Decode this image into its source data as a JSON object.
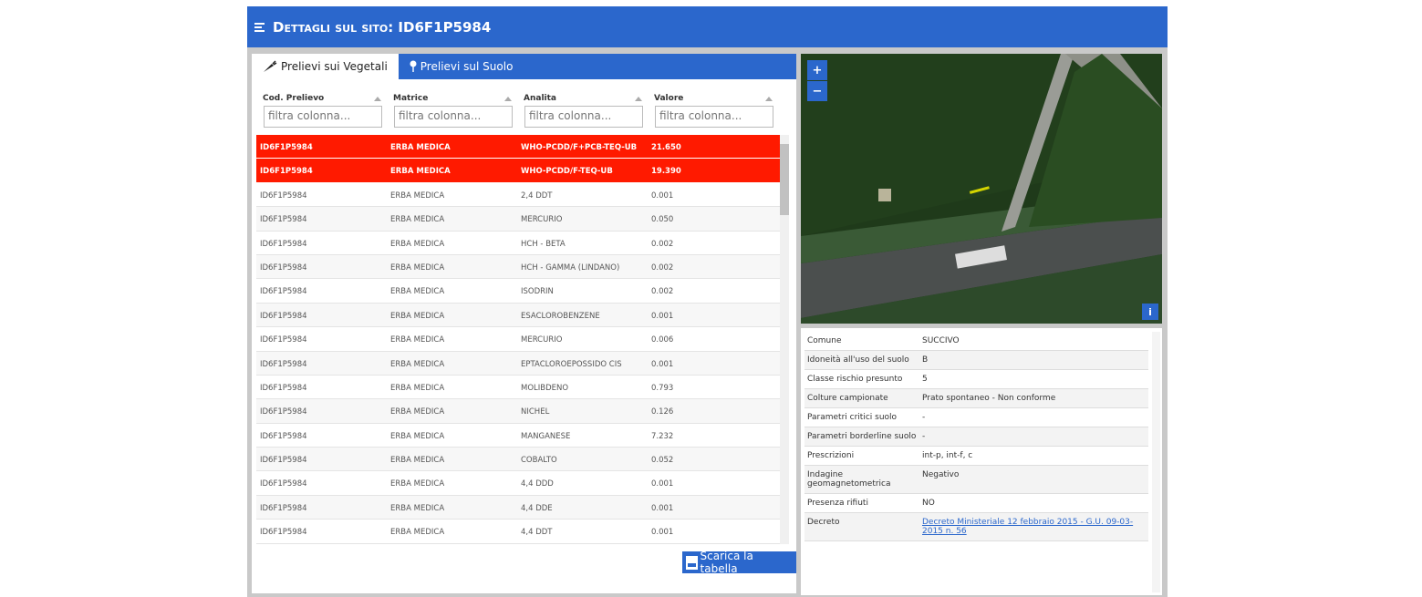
{
  "header": {
    "title": "Dettagli sul sito: ID6F1P5984"
  },
  "tabs": [
    "Prelievi sui Vegetali",
    "Prelievi sul Suolo"
  ],
  "table": {
    "columns": [
      "Cod. Prelievo",
      "Matrice",
      "Analita",
      "Valore"
    ],
    "filter_placeholder": "filtra colonna...",
    "rows": [
      [
        "ID6F1P5984",
        "ERBA MEDICA",
        "WHO-PCDD/F+PCB-TEQ-UB",
        "21.650"
      ],
      [
        "ID6F1P5984",
        "ERBA MEDICA",
        "WHO-PCDD/F-TEQ-UB",
        "19.390"
      ],
      [
        "ID6F1P5984",
        "ERBA MEDICA",
        "2,4 DDT",
        "0.001"
      ],
      [
        "ID6F1P5984",
        "ERBA MEDICA",
        "MERCURIO",
        "0.050"
      ],
      [
        "ID6F1P5984",
        "ERBA MEDICA",
        "HCH - BETA",
        "0.002"
      ],
      [
        "ID6F1P5984",
        "ERBA MEDICA",
        "HCH - GAMMA (LINDANO)",
        "0.002"
      ],
      [
        "ID6F1P5984",
        "ERBA MEDICA",
        "ISODRIN",
        "0.002"
      ],
      [
        "ID6F1P5984",
        "ERBA MEDICA",
        "ESACLOROBENZENE",
        "0.001"
      ],
      [
        "ID6F1P5984",
        "ERBA MEDICA",
        "MERCURIO",
        "0.006"
      ],
      [
        "ID6F1P5984",
        "ERBA MEDICA",
        "EPTACLOROEPOSSIDO CIS",
        "0.001"
      ],
      [
        "ID6F1P5984",
        "ERBA MEDICA",
        "MOLIBDENO",
        "0.793"
      ],
      [
        "ID6F1P5984",
        "ERBA MEDICA",
        "NICHEL",
        "0.126"
      ],
      [
        "ID6F1P5984",
        "ERBA MEDICA",
        "MANGANESE",
        "7.232"
      ],
      [
        "ID6F1P5984",
        "ERBA MEDICA",
        "COBALTO",
        "0.052"
      ],
      [
        "ID6F1P5984",
        "ERBA MEDICA",
        "4,4 DDD",
        "0.001"
      ],
      [
        "ID6F1P5984",
        "ERBA MEDICA",
        "4,4 DDE",
        "0.001"
      ],
      [
        "ID6F1P5984",
        "ERBA MEDICA",
        "4,4 DDT",
        "0.001"
      ]
    ]
  },
  "download_button": "Scarica la tabella",
  "map": {
    "zoom_in": "+",
    "zoom_out": "−",
    "info": "i"
  },
  "details": [
    {
      "label": "Comune",
      "value": "SUCCIVO"
    },
    {
      "label": "Idoneità all'uso del suolo",
      "value": "B"
    },
    {
      "label": "Classe rischio presunto",
      "value": "5"
    },
    {
      "label": "Colture campionate",
      "value": "Prato spontaneo - Non conforme"
    },
    {
      "label": "Parametri critici suolo",
      "value": "-"
    },
    {
      "label": "Parametri borderline suolo",
      "value": "-"
    },
    {
      "label": "Prescrizioni",
      "value": "int-p, int-f, c"
    },
    {
      "label": "Indagine geomagnetometrica",
      "value": "Negativo"
    },
    {
      "label": "Presenza rifiuti",
      "value": "NO"
    },
    {
      "label": "Decreto",
      "value": "Decreto Ministeriale 12 febbraio 2015 - G.U. 09-03-2015 n. 56"
    }
  ]
}
